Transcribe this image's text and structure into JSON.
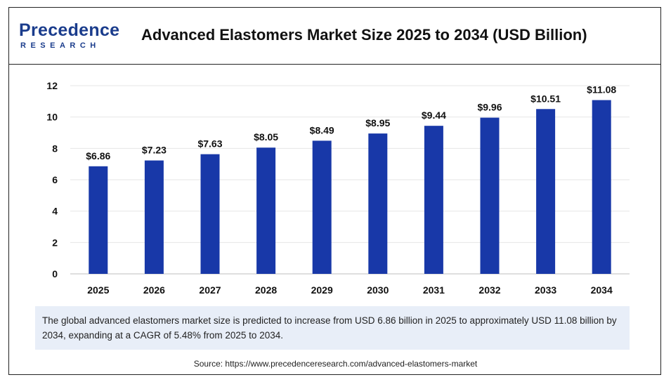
{
  "logo": {
    "main": "Precedence",
    "sub": "RESEARCH"
  },
  "title": "Advanced Elastomers Market Size 2025 to 2034 (USD Billion)",
  "summary": "The global advanced elastomers market size is predicted to increase from USD 6.86 billion in 2025 to approximately USD 11.08 billion by 2034, expanding at a CAGR of 5.48% from 2025 to 2034.",
  "source": "Source: https://www.precedenceresearch.com/advanced-elastomers-market",
  "colors": {
    "bar": "#1838a8",
    "accent": "#1a3c8c"
  },
  "chart_data": {
    "type": "bar",
    "title": "Advanced Elastomers Market Size 2025 to 2034 (USD Billion)",
    "xlabel": "",
    "ylabel": "",
    "categories": [
      "2025",
      "2026",
      "2027",
      "2028",
      "2029",
      "2030",
      "2031",
      "2032",
      "2033",
      "2034"
    ],
    "values": [
      6.86,
      7.23,
      7.63,
      8.05,
      8.49,
      8.95,
      9.44,
      9.96,
      10.51,
      11.08
    ],
    "data_labels": [
      "$6.86",
      "$7.23",
      "$7.63",
      "$8.05",
      "$8.49",
      "$8.95",
      "$9.44",
      "$9.96",
      "$10.51",
      "$11.08"
    ],
    "yticks": [
      0,
      2,
      4,
      6,
      8,
      10,
      12
    ],
    "ylim": [
      0,
      12
    ],
    "grid": true,
    "legend": "none"
  }
}
